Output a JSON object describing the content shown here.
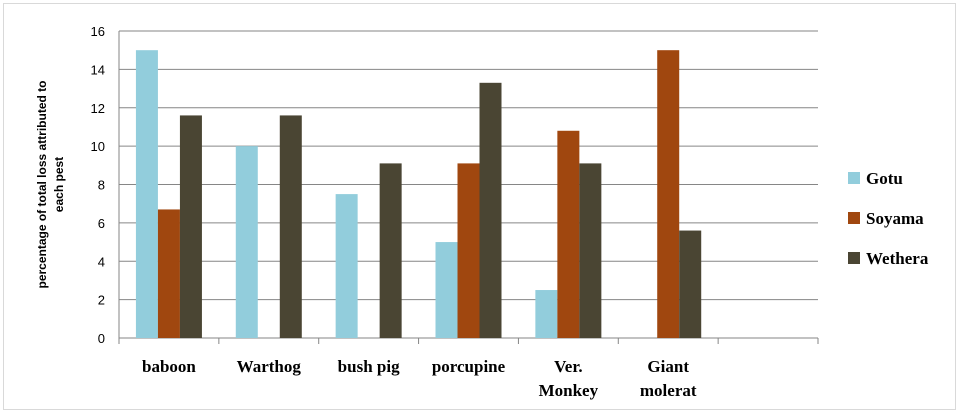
{
  "chart_data": {
    "type": "bar",
    "categories": [
      "baboon",
      "Warthog",
      "bush pig",
      "porcupine",
      "Ver. Monkey",
      "Giant molerat",
      ""
    ],
    "category_lines": [
      [
        "baboon"
      ],
      [
        "Warthog"
      ],
      [
        "bush pig"
      ],
      [
        "porcupine"
      ],
      [
        "Ver.",
        "Monkey"
      ],
      [
        "Giant",
        "molerat"
      ],
      []
    ],
    "series": [
      {
        "name": "Gotu",
        "color": "#92cddc",
        "values": [
          15,
          10,
          7.5,
          5,
          2.5,
          0,
          0
        ]
      },
      {
        "name": "Soyama",
        "color": "#a0470f",
        "values": [
          6.7,
          0,
          0,
          9.1,
          10.8,
          15,
          0
        ]
      },
      {
        "name": "Wethera",
        "color": "#4a4533",
        "values": [
          11.6,
          11.6,
          9.1,
          13.3,
          9.1,
          5.6,
          0
        ]
      }
    ],
    "ylabel_lines": [
      "percentage of total loss attributed to",
      "each pest"
    ],
    "xlabel": "",
    "ylim": [
      0,
      16
    ],
    "yticks": [
      0,
      2,
      4,
      6,
      8,
      10,
      12,
      14,
      16
    ],
    "grid": true,
    "legend_position": "right"
  }
}
